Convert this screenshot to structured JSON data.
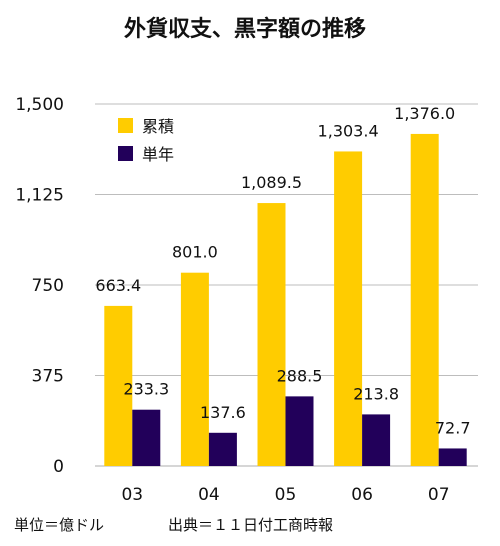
{
  "chart_data": {
    "type": "bar",
    "title": "外貨収支、黒字額の推移",
    "categories": [
      "03",
      "04",
      "05",
      "06",
      "07"
    ],
    "series": [
      {
        "name": "累積",
        "values": [
          663.4,
          801.0,
          1089.5,
          1303.4,
          1376.0
        ],
        "labels": [
          "663.4",
          "801.0",
          "1,089.5",
          "1,303.4",
          "1,376.0"
        ],
        "color": "#FFCC00"
      },
      {
        "name": "単年",
        "values": [
          233.3,
          137.6,
          288.5,
          213.8,
          72.7
        ],
        "labels": [
          "233.3",
          "137.6",
          "288.5",
          "213.8",
          "72.7"
        ],
        "color": "#22005A"
      }
    ],
    "y_ticks": [
      0,
      375,
      750,
      1125,
      1500
    ],
    "y_tick_labels": [
      "0",
      "375",
      "750",
      "1,125",
      "1,500"
    ],
    "ylim": [
      0,
      1500
    ],
    "grid": true,
    "legend_position": "top-left"
  },
  "footer": {
    "unit": "単位＝億ドル",
    "source": "出典＝１１日付工商時報"
  }
}
